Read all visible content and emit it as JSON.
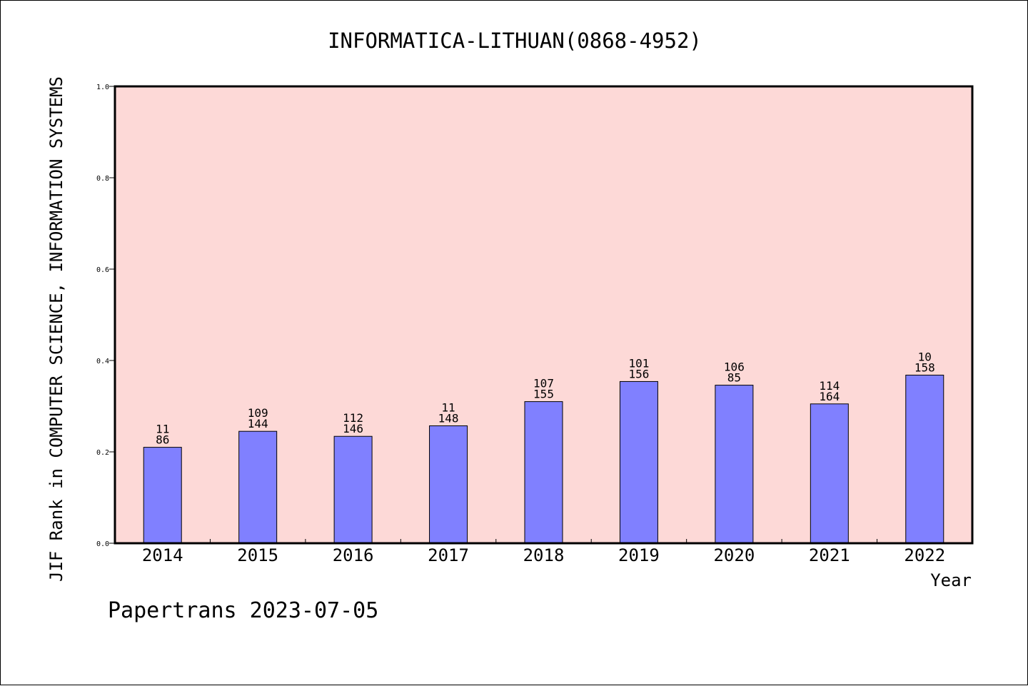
{
  "chart_data": {
    "type": "bar",
    "title": "INFORMATICA-LITHUAN(0868-4952)",
    "xlabel": "Year",
    "ylabel": "JIF Rank in COMPUTER SCIENCE, INFORMATION SYSTEMS",
    "categories": [
      "2014",
      "2015",
      "2016",
      "2017",
      "2018",
      "2019",
      "2020",
      "2021",
      "2022"
    ],
    "values": [
      0.21,
      0.245,
      0.234,
      0.257,
      0.31,
      0.354,
      0.346,
      0.305,
      0.368
    ],
    "rank_labels": [
      "11",
      "109",
      "112",
      "11",
      "107",
      "101",
      "106",
      "114",
      "10"
    ],
    "total_labels": [
      "86",
      "144",
      "146",
      "148",
      "155",
      "156",
      "85",
      "164",
      "158"
    ],
    "ylim": [
      0,
      1.0
    ],
    "yticks": [
      "0.0",
      "0.2",
      "0.4",
      "0.6",
      "0.8",
      "1.0"
    ],
    "bar_color": "#8080ff",
    "plot_background": "#fdd9d7",
    "grid": false,
    "legend": "none"
  },
  "footer": "Papertrans 2023-07-05"
}
